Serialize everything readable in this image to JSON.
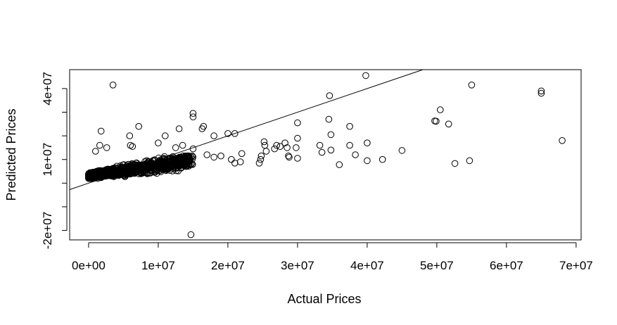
{
  "chart_data": {
    "type": "scatter",
    "title": "",
    "xlabel": "Actual Prices",
    "ylabel": "Predicted Prices",
    "xlim": [
      -2720000,
      70720000
    ],
    "ylim": [
      -24000000,
      48000000
    ],
    "x_ticks": [
      0,
      10000000,
      20000000,
      30000000,
      40000000,
      50000000,
      60000000,
      70000000
    ],
    "x_tick_labels": [
      "0e+00",
      "1e+07",
      "2e+07",
      "3e+07",
      "4e+07",
      "5e+07",
      "6e+07",
      "7e+07"
    ],
    "y_ticks": [
      -20000000,
      -10000000,
      0,
      10000000,
      20000000,
      30000000,
      40000000
    ],
    "y_tick_labels": [
      "-2e+07",
      "",
      "",
      "1e+07",
      "",
      "",
      "4e+07"
    ],
    "grid": false,
    "marker": "open-circle",
    "reference_line": {
      "type": "abline",
      "intercept": 0,
      "slope": 1
    },
    "outlier_points": [
      [
        3500000,
        41500000
      ],
      [
        1800000,
        22000000
      ],
      [
        14700000,
        -21800000
      ],
      [
        39800000,
        45500000
      ],
      [
        55000000,
        41500000
      ],
      [
        65000000,
        39000000
      ],
      [
        65000000,
        38000000
      ],
      [
        68000000,
        18000000
      ],
      [
        50500000,
        31000000
      ],
      [
        49700000,
        26300000
      ],
      [
        49900000,
        26200000
      ],
      [
        51700000,
        25000000
      ],
      [
        52600000,
        8300000
      ],
      [
        54700000,
        9500000
      ],
      [
        45000000,
        13800000
      ],
      [
        42200000,
        10000000
      ],
      [
        40000000,
        17000000
      ],
      [
        38300000,
        12000000
      ],
      [
        36000000,
        7800000
      ],
      [
        40000000,
        9500000
      ],
      [
        37500000,
        24000000
      ],
      [
        37500000,
        16000000
      ],
      [
        34500000,
        27000000
      ],
      [
        34800000,
        20500000
      ],
      [
        34600000,
        37000000
      ],
      [
        33500000,
        13000000
      ],
      [
        34800000,
        14000000
      ],
      [
        33200000,
        16000000
      ],
      [
        30000000,
        25500000
      ],
      [
        30000000,
        19000000
      ],
      [
        29800000,
        15000000
      ],
      [
        30000000,
        10500000
      ],
      [
        28500000,
        15000000
      ],
      [
        28800000,
        11000000
      ],
      [
        28700000,
        11500000
      ],
      [
        28200000,
        17000000
      ],
      [
        27500000,
        15500000
      ],
      [
        27000000,
        16000000
      ],
      [
        26700000,
        14500000
      ],
      [
        25300000,
        16000000
      ],
      [
        25200000,
        17500000
      ],
      [
        24800000,
        11500000
      ],
      [
        24500000,
        8500000
      ],
      [
        24700000,
        10000000
      ],
      [
        25500000,
        13500000
      ],
      [
        22000000,
        12500000
      ],
      [
        21800000,
        9000000
      ],
      [
        20500000,
        10000000
      ],
      [
        21000000,
        8500000
      ],
      [
        19000000,
        11500000
      ],
      [
        20000000,
        21000000
      ],
      [
        21000000,
        21000000
      ],
      [
        18000000,
        20000000
      ],
      [
        16500000,
        24000000
      ],
      [
        16300000,
        23000000
      ],
      [
        15000000,
        29500000
      ],
      [
        15000000,
        28000000
      ],
      [
        13000000,
        23000000
      ],
      [
        11000000,
        20000000
      ],
      [
        5900000,
        20000000
      ],
      [
        7200000,
        24000000
      ],
      [
        6000000,
        16000000
      ],
      [
        6300000,
        15500000
      ],
      [
        10000000,
        17000000
      ],
      [
        12500000,
        15000000
      ],
      [
        13500000,
        16000000
      ],
      [
        15000000,
        14500000
      ],
      [
        17000000,
        12000000
      ],
      [
        18000000,
        11000000
      ],
      [
        1600000,
        16000000
      ],
      [
        2600000,
        15000000
      ],
      [
        1000000,
        13500000
      ]
    ],
    "point_cloud": {
      "x_range": [
        0,
        15000000
      ],
      "y_range": [
        2000000,
        11500000
      ],
      "count": 1100,
      "trend": "predicted ≈ 3e+06 + 0.45 × actual"
    }
  }
}
